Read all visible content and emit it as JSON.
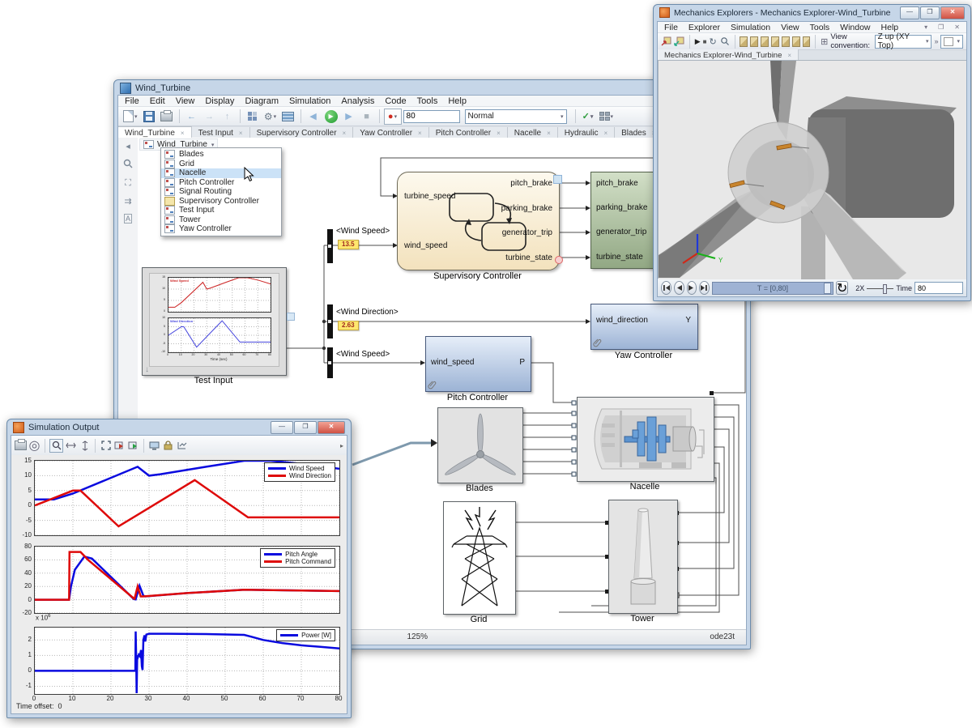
{
  "glyphs": {
    "dropdown": "▾",
    "close": "✕",
    "close_small": "×",
    "overflow": "»",
    "down_arrow": "↓",
    "loop": "↻",
    "check": "✓",
    "back": "←",
    "fwd": "→",
    "up": "↑",
    "play": "▶",
    "stop": "■",
    "rec": "●",
    "min": "—",
    "max": "❐"
  },
  "simulink": {
    "title": "Wind_Turbine",
    "menu": [
      "File",
      "Edit",
      "View",
      "Display",
      "Diagram",
      "Simulation",
      "Analysis",
      "Code",
      "Tools",
      "Help"
    ],
    "toolbar": {
      "stop_time": "80",
      "mode": "Normal"
    },
    "tabs": [
      "Wind_Turbine",
      "Test Input",
      "Supervisory Controller",
      "Yaw Controller",
      "Pitch Controller",
      "Nacelle",
      "Hydraulic",
      "Blades"
    ],
    "breadcrumb": "Wind_Turbine",
    "popup": [
      "Blades",
      "Grid",
      "Nacelle",
      "Pitch Controller",
      "Signal Routing",
      "Supervisory Controller",
      "Test Input",
      "Tower",
      "Yaw Controller"
    ],
    "status": {
      "zoom": "125%",
      "solver": "ode23t"
    },
    "signals": [
      {
        "name": "<Wind Speed>",
        "value": "13.5"
      },
      {
        "name": "<Wind Direction>",
        "value": "2.63"
      },
      {
        "name": "<Wind Speed>"
      }
    ],
    "blocks": {
      "supervisory": {
        "label": "Supervisory Controller",
        "in": [
          "turbine_speed",
          "wind_speed"
        ],
        "out": [
          "pitch_brake",
          "parking_brake",
          "generator_trip",
          "turbine_state"
        ]
      },
      "turbine": {
        "fragment": "tur",
        "in": [
          "pitch_brake",
          "parking_brake",
          "generator_trip",
          "turbine_state"
        ]
      },
      "yaw": {
        "label": "Yaw Controller",
        "in": "wind_direction",
        "out": "Y"
      },
      "pitch": {
        "label": "Pitch Controller",
        "in": "wind_speed",
        "out": "P"
      },
      "test_input": {
        "label": "Test Input"
      },
      "blades": {
        "label": "Blades"
      },
      "nacelle": {
        "label": "Nacelle"
      },
      "grid": {
        "label": "Grid"
      },
      "tower": {
        "label": "Tower"
      }
    }
  },
  "mechanics": {
    "title": "Mechanics Explorers - Mechanics Explorer-Wind_Turbine",
    "menu": [
      "File",
      "Explorer",
      "Simulation",
      "View",
      "Tools",
      "Window",
      "Help"
    ],
    "view_convention_label": "View convention:",
    "view_convention": "Z up (XY Top)",
    "tab": "Mechanics Explorer-Wind_Turbine",
    "timeline": "T = [0,80]",
    "speed": "2X",
    "time_label": "Time",
    "time": "80"
  },
  "simout": {
    "title": "Simulation Output",
    "time_offset_label": "Time offset:",
    "time_offset": "0",
    "power_scale": "x 10",
    "power_scale_exp": "6"
  },
  "chart_data": [
    {
      "type": "line",
      "xlim": [
        0,
        80
      ],
      "ylim": [
        -10,
        15
      ],
      "yticks": [
        -10,
        -5,
        0,
        5,
        10,
        15
      ],
      "xticks": [
        0,
        10,
        20,
        30,
        40,
        50,
        60,
        70,
        80
      ],
      "xlabels": false,
      "tf": 8,
      "lw": 2.5,
      "legend": true,
      "series": [
        {
          "name": "Wind Speed",
          "color": "#0a0adf",
          "x": [
            0,
            5,
            10,
            27,
            30,
            33,
            45,
            55,
            62,
            70,
            80
          ],
          "y": [
            2,
            2,
            4,
            13,
            10,
            10.5,
            13,
            15,
            15,
            14,
            12.3
          ]
        },
        {
          "name": "Wind Direction",
          "color": "#de0a0a",
          "x": [
            0,
            10,
            12,
            22,
            42,
            56,
            80
          ],
          "y": [
            0,
            5,
            5,
            -7,
            8.5,
            -4,
            -4
          ]
        }
      ]
    },
    {
      "type": "line",
      "xlim": [
        0,
        80
      ],
      "ylim": [
        -20,
        80
      ],
      "yticks": [
        -20,
        0,
        20,
        40,
        60,
        80
      ],
      "xticks": [
        0,
        10,
        20,
        30,
        40,
        50,
        60,
        70,
        80
      ],
      "xlabels": false,
      "tf": 8,
      "lw": 2.5,
      "legend": true,
      "series": [
        {
          "name": "Pitch Angle",
          "color": "#0a0adf",
          "x": [
            0,
            9,
            9.5,
            10.5,
            13,
            15,
            26,
            26.5,
            27.5,
            28.5,
            29,
            40,
            55,
            80
          ],
          "y": [
            0,
            0,
            20,
            45,
            65,
            62,
            1,
            0.5,
            21,
            6,
            5,
            10,
            15,
            13
          ]
        },
        {
          "name": "Pitch Command",
          "color": "#de0a0a",
          "x": [
            0,
            9,
            9.1,
            12,
            14,
            26,
            26.2,
            27,
            27.8,
            28.5,
            40,
            55,
            80
          ],
          "y": [
            0,
            0,
            72,
            72,
            60,
            2,
            1.5,
            20,
            5,
            5,
            10,
            15,
            13
          ]
        }
      ]
    },
    {
      "type": "line",
      "xlim": [
        0,
        80
      ],
      "ylim": [
        -1.5,
        2.8
      ],
      "yticks": [
        -1,
        0,
        1,
        2
      ],
      "xticks": [
        0,
        10,
        20,
        30,
        40,
        50,
        60,
        70,
        80
      ],
      "xlabels": true,
      "tf": 8,
      "lw": 2.5,
      "legend": true,
      "series": [
        {
          "name": "Power [W]",
          "color": "#0a0adf",
          "x": [
            0,
            26.4,
            26.5,
            26.6,
            26.75,
            26.9,
            27.1,
            27.3,
            27.6,
            27.9,
            28.1,
            28.3,
            28.5,
            28.8,
            29,
            29.3,
            30,
            35,
            45,
            55,
            57,
            60,
            65,
            70,
            75,
            80
          ],
          "y": [
            0,
            0,
            2.55,
            1.2,
            -1.45,
            1.0,
            0.9,
            1.05,
            0.95,
            1.35,
            0.3,
            0.05,
            2.0,
            2.3,
            1.9,
            2.35,
            2.4,
            2.4,
            2.38,
            2.33,
            2.2,
            2.0,
            1.8,
            1.65,
            1.55,
            1.45
          ]
        }
      ]
    },
    {
      "type": "line",
      "xlim": [
        0,
        80
      ],
      "ylim": [
        0,
        15
      ],
      "yticks": [
        0,
        5,
        10,
        15
      ],
      "xticks": [
        0,
        10,
        20,
        30,
        40,
        50,
        60,
        70,
        80
      ],
      "xlabels": false,
      "tf": 3.5,
      "lw": 1,
      "corner": true,
      "series": [
        {
          "name": "Wind Speed",
          "color": "#cc2222",
          "x": [
            0,
            5,
            10,
            27,
            30,
            33,
            45,
            55,
            62,
            70,
            80
          ],
          "y": [
            2,
            2,
            4,
            13,
            10,
            10.5,
            13,
            15,
            15,
            14,
            12.3
          ]
        }
      ]
    },
    {
      "type": "line",
      "xlim": [
        0,
        80
      ],
      "ylim": [
        -10,
        10
      ],
      "yticks": [
        -10,
        -5,
        0,
        5,
        10
      ],
      "xticks": [
        0,
        10,
        20,
        30,
        40,
        50,
        60,
        70,
        80
      ],
      "xlabels": true,
      "tf": 3.5,
      "lw": 1,
      "corner": true,
      "xlabel": "Time (sec)",
      "series": [
        {
          "name": "Wind Direction",
          "color": "#4444dd",
          "x": [
            0,
            10,
            12,
            22,
            42,
            56,
            80
          ],
          "y": [
            0,
            5,
            5,
            -7,
            8.5,
            -4,
            -4
          ]
        }
      ]
    }
  ]
}
